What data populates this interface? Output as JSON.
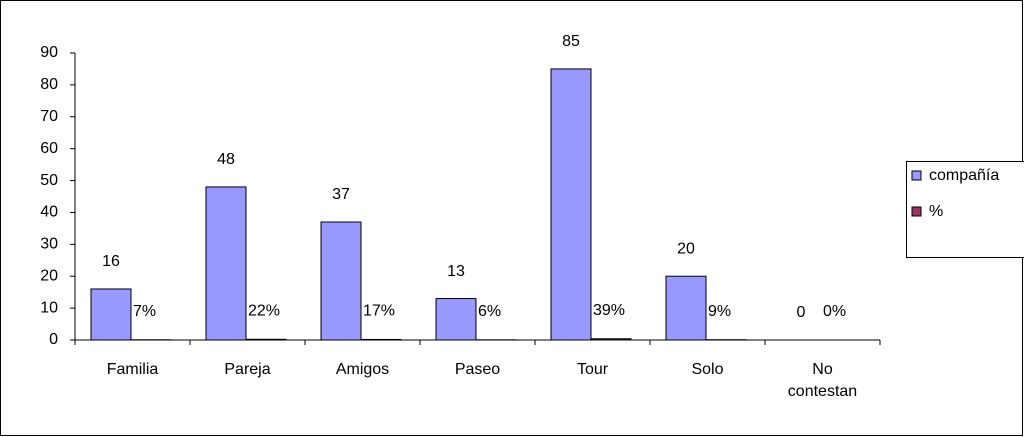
{
  "chart_data": {
    "type": "bar",
    "categories": [
      "Familia",
      "Pareja",
      "Amigos",
      "Paseo",
      "Tour",
      "Solo",
      "No contestan"
    ],
    "series": [
      {
        "name": "compañía",
        "color": "#9999ff",
        "values": [
          16,
          48,
          37,
          13,
          85,
          20,
          0
        ]
      },
      {
        "name": "%",
        "color": "#993366",
        "values": [
          0.07,
          0.22,
          0.17,
          0.06,
          0.39,
          0.09,
          0
        ],
        "value_labels": [
          "7%",
          "22%",
          "17%",
          "6%",
          "39%",
          "9%",
          "0%"
        ]
      }
    ],
    "ylim": [
      0,
      90
    ],
    "yticks": [
      0,
      10,
      20,
      30,
      40,
      50,
      60,
      70,
      80,
      90
    ],
    "legend": "right"
  }
}
